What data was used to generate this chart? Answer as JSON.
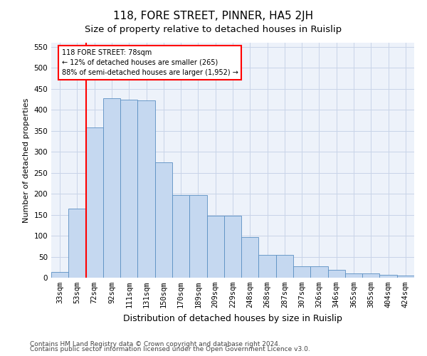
{
  "title": "118, FORE STREET, PINNER, HA5 2JH",
  "subtitle": "Size of property relative to detached houses in Ruislip",
  "xlabel": "Distribution of detached houses by size in Ruislip",
  "ylabel": "Number of detached properties",
  "categories": [
    "33sqm",
    "53sqm",
    "72sqm",
    "92sqm",
    "111sqm",
    "131sqm",
    "150sqm",
    "170sqm",
    "189sqm",
    "209sqm",
    "229sqm",
    "248sqm",
    "268sqm",
    "287sqm",
    "307sqm",
    "326sqm",
    "346sqm",
    "365sqm",
    "385sqm",
    "404sqm",
    "424sqm"
  ],
  "bar_heights": [
    13,
    165,
    358,
    428,
    424,
    422,
    275,
    197,
    197,
    147,
    147,
    97,
    55,
    55,
    27,
    27,
    19,
    11,
    11,
    7,
    5
  ],
  "bar_color": "#c5d8f0",
  "bar_edge_color": "#5a8fc2",
  "vline_x": 1.5,
  "vline_color": "red",
  "annotation_text": "118 FORE STREET: 78sqm\n← 12% of detached houses are smaller (265)\n88% of semi-detached houses are larger (1,952) →",
  "annotation_box_color": "white",
  "annotation_box_edgecolor": "red",
  "ylim": [
    0,
    560
  ],
  "yticks": [
    0,
    50,
    100,
    150,
    200,
    250,
    300,
    350,
    400,
    450,
    500,
    550
  ],
  "footer_line1": "Contains HM Land Registry data © Crown copyright and database right 2024.",
  "footer_line2": "Contains public sector information licensed under the Open Government Licence v3.0.",
  "title_fontsize": 11,
  "subtitle_fontsize": 9.5,
  "xlabel_fontsize": 9,
  "ylabel_fontsize": 8,
  "tick_fontsize": 7.5,
  "footer_fontsize": 6.5,
  "background_color": "#edf2fa",
  "grid_color": "#c8d4e8"
}
